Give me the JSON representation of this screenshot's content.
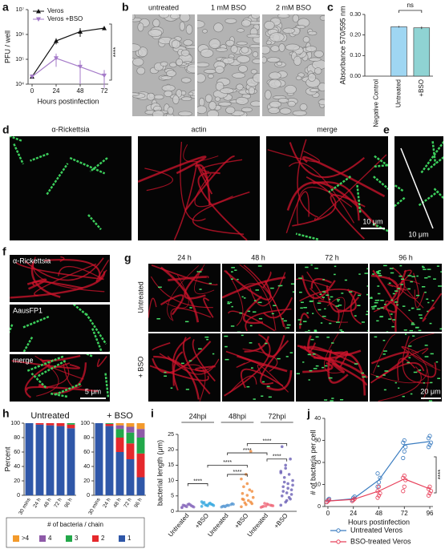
{
  "figure": {
    "panel_labels": [
      "a",
      "b",
      "c",
      "d",
      "e",
      "f",
      "g",
      "h",
      "i",
      "j"
    ],
    "b_labels": [
      "untreated",
      "1 mM BSO",
      "2 mM BSO"
    ],
    "d_labels": [
      "α-Rickettsia",
      "actin",
      "merge"
    ],
    "d_scale": "10 μm",
    "e_scale": "10 μm",
    "f_labels": [
      "α-Rickettsia",
      "AausFP1",
      "merge"
    ],
    "f_scale": "5 μm",
    "g_columns": [
      "24 h",
      "48 h",
      "72 h",
      "96 h"
    ],
    "g_rows": [
      "Untreated",
      "+ BSO"
    ],
    "g_scale": "20 μm"
  },
  "chart_data": [
    {
      "type": "line",
      "log_y": true,
      "x": [
        0,
        24,
        48,
        72
      ],
      "xlim": [
        -4,
        76
      ],
      "xticks": [
        0,
        24,
        48,
        72
      ],
      "ylim": [
        10000,
        10000000
      ],
      "yticks": [
        {
          "value": 10000,
          "label": "10⁴"
        },
        {
          "value": 100000,
          "label": "10⁵"
        },
        {
          "value": 1000000,
          "label": "10⁶"
        },
        {
          "value": 10000000,
          "label": "10⁷"
        }
      ],
      "xlabel": "Hours postinfection",
      "ylabel": "PFU / well",
      "annotation": "****",
      "series": [
        {
          "name": "Veros",
          "color": "#111111",
          "marker": "triangle",
          "values": [
            20000,
            550000,
            1300000,
            1800000
          ],
          "errors": [
            3000,
            150000,
            500000,
            250000
          ]
        },
        {
          "name": "Veros +BSO",
          "color": "#a57bc9",
          "marker": "triangle-down",
          "values": [
            20000,
            110000,
            50000,
            22000
          ],
          "errors": [
            3000,
            60000,
            40000,
            15000
          ]
        }
      ]
    },
    {
      "type": "bar",
      "categories": [
        "Negative Control",
        "Untreated",
        "+BSO"
      ],
      "values": [
        0,
        0.24,
        0.235
      ],
      "errors": [
        0,
        0.004,
        0.006
      ],
      "colors": [
        "#9fd6f2",
        "#9fd6f2",
        "#8fd3d3"
      ],
      "ylim": [
        0,
        0.3
      ],
      "yticks": [
        {
          "value": 0,
          "label": "0.00"
        },
        {
          "value": 0.1,
          "label": "0.10"
        },
        {
          "value": 0.2,
          "label": "0.20"
        },
        {
          "value": 0.3,
          "label": "0.30"
        }
      ],
      "ylabel": "Absorbance 570/595 nm",
      "annotation": "ns"
    },
    {
      "type": "stacked_bar_groups",
      "groups": [
        "Untreated",
        "+ BSO"
      ],
      "categories": [
        "30 mins",
        "24 h",
        "48 h",
        "72 h",
        "96 h"
      ],
      "ylim": [
        0,
        100
      ],
      "yticks": [
        0,
        20,
        40,
        60,
        80,
        100
      ],
      "ylabel": "Percent",
      "legend_title": "# of bacteria / chain",
      "series": [
        {
          "name": ">4",
          "color": "#f39a2b",
          "values": [
            [
              0,
              0,
              0,
              0,
              0
            ],
            [
              0,
              0,
              3,
              5,
              8
            ]
          ]
        },
        {
          "name": "4",
          "color": "#8e5aa8",
          "values": [
            [
              0,
              0,
              0,
              0,
              0
            ],
            [
              0,
              0,
              5,
              8,
              12
            ]
          ]
        },
        {
          "name": "3",
          "color": "#22a84a",
          "values": [
            [
              0,
              0,
              0,
              0,
              2
            ],
            [
              0,
              1,
              12,
              15,
              22
            ]
          ]
        },
        {
          "name": "2",
          "color": "#e5282c",
          "values": [
            [
              0,
              2,
              3,
              4,
              5
            ],
            [
              0,
              3,
              20,
              22,
              33
            ]
          ]
        },
        {
          "name": "1",
          "color": "#2f57a8",
          "values": [
            [
              100,
              98,
              97,
              96,
              93
            ],
            [
              100,
              96,
              60,
              50,
              25
            ]
          ]
        }
      ]
    },
    {
      "type": "strip",
      "categories": [
        "Untreated",
        "+BSO",
        "Untreated",
        "+BSO",
        "Untreated",
        "+BSO"
      ],
      "groups": [
        "24hpi",
        "48hpi",
        "72hpi"
      ],
      "colors": [
        "#8a6bbd",
        "#37a9e0",
        "#5b9bd5",
        "#f08a3a",
        "#ef6a7a",
        "#6a5fb5"
      ],
      "ylim": [
        0,
        25
      ],
      "yticks": [
        0,
        5,
        10,
        15,
        20,
        25
      ],
      "ylabel": "bacterial length (μm)",
      "annotations": [
        "****",
        "****",
        "****",
        "****",
        "****",
        "****"
      ],
      "values": [
        [
          1.2,
          1.5,
          1.8,
          2.0,
          2.2,
          1.6,
          1.9,
          2.4,
          1.4,
          1.7,
          2.1,
          1.3
        ],
        [
          1.6,
          2.0,
          2.3,
          2.6,
          1.8,
          2.2,
          2.9,
          2.4,
          1.9,
          2.1,
          2.7,
          3.1
        ],
        [
          1.4,
          1.8,
          2.2,
          1.6,
          2.0,
          2.5,
          1.7,
          1.9,
          2.3,
          1.5
        ],
        [
          1.5,
          2.2,
          3.0,
          4.0,
          5.2,
          6.5,
          8.0,
          3.5,
          4.5,
          2.8,
          7.0,
          10.5,
          12.0,
          19.5,
          5.8,
          9.0,
          2.5,
          3.8
        ],
        [
          1.3,
          1.7,
          2.0,
          1.5,
          2.4,
          1.9,
          1.6,
          2.2,
          1.8,
          2.6
        ],
        [
          2,
          3,
          4,
          5,
          6,
          7,
          8,
          9,
          10,
          11,
          12,
          13,
          15,
          17,
          21,
          3.5,
          5.5,
          6.5,
          7.5,
          8.5,
          9.5,
          4.5,
          12.5,
          14
        ]
      ]
    },
    {
      "type": "scatter_line",
      "x": [
        0,
        24,
        48,
        72,
        96
      ],
      "xlim": [
        -3,
        99
      ],
      "xticks": [
        0,
        24,
        48,
        72,
        96
      ],
      "ylim": [
        0,
        40
      ],
      "yticks": [
        0,
        10,
        20,
        30,
        40
      ],
      "xlabel": "Hours postinfection",
      "ylabel": "# of bacteria per cell",
      "annotation": "****",
      "series": [
        {
          "name": "Untreated Veros",
          "color": "#3a7cc0",
          "values": [
            2.5,
            3.5,
            12,
            28,
            29.5
          ],
          "points": [
            [
              2,
              3,
              3.5
            ],
            [
              3,
              4,
              4.5
            ],
            [
              9,
              11,
              13,
              15
            ],
            [
              22,
              25,
              27,
              29,
              30
            ],
            [
              27,
              28,
              29,
              31,
              32
            ]
          ]
        },
        {
          "name": "BSO-treated Veros",
          "color": "#e8405a",
          "values": [
            2.5,
            3.2,
            7,
            12.5,
            8
          ],
          "points": [
            [
              2,
              2.5,
              3
            ],
            [
              2.5,
              3,
              3.5
            ],
            [
              4,
              5,
              6,
              7,
              9
            ],
            [
              7,
              9,
              12,
              13,
              14
            ],
            [
              5,
              6,
              7,
              8,
              9
            ]
          ]
        }
      ]
    }
  ]
}
